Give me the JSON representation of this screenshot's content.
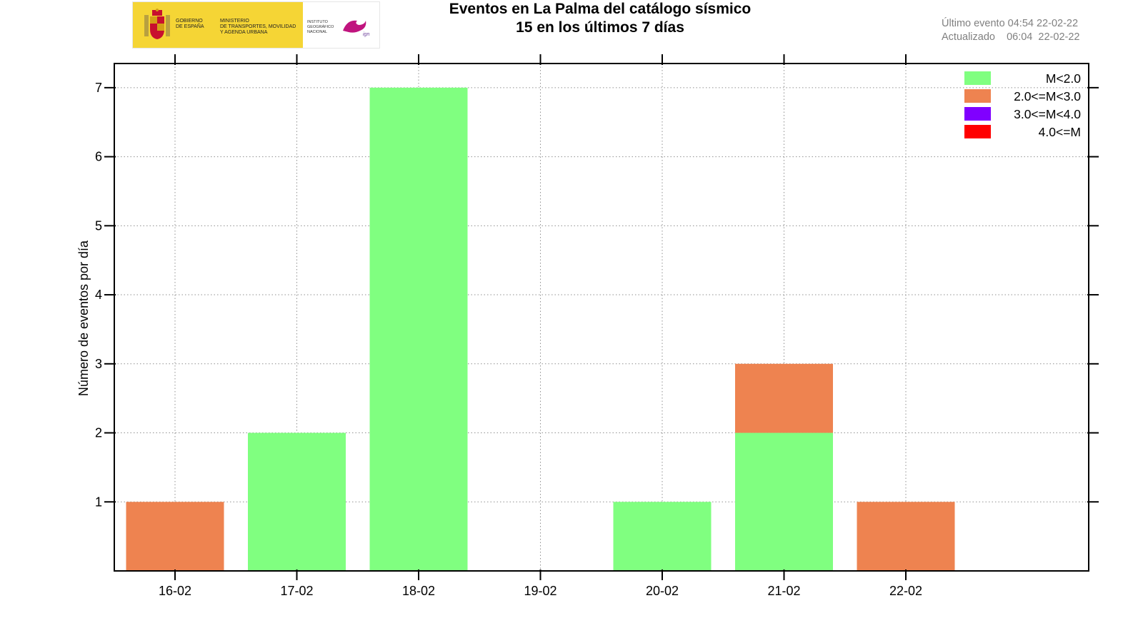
{
  "header": {
    "logo": {
      "gov_text": [
        "GOBIERNO",
        "DE ESPAÑA"
      ],
      "ministry_text": [
        "MINISTERIO",
        "DE TRANSPORTES, MOVILIDAD",
        "Y AGENDA URBANA"
      ],
      "ign_text": [
        "INSTITUTO",
        "GEOGRÁFICO",
        "NACIONAL"
      ],
      "ign_mark_text": "ign",
      "gov_color": "#f5d535",
      "ign_mark_color": "#c0147e"
    },
    "title_line1": "Eventos en La Palma del catálogo sísmico",
    "title_line2": "15 en los últimos 7 días",
    "last_event": "Último evento 04:54 22-02-22",
    "updated": "Actualizado    06:04  22-02-22"
  },
  "chart_data": {
    "type": "bar",
    "stacked": true,
    "title": "Eventos en La Palma del catálogo sísmico",
    "subtitle": "15 en los últimos 7 días",
    "xlabel": "",
    "ylabel": "Número de eventos por día",
    "categories": [
      "16-02",
      "17-02",
      "18-02",
      "19-02",
      "20-02",
      "21-02",
      "22-02"
    ],
    "ylim": [
      0,
      7.35
    ],
    "yticks": [
      1,
      2,
      3,
      4,
      5,
      6,
      7
    ],
    "grid": true,
    "legend_position": "top-right",
    "series": [
      {
        "name": "M<2.0",
        "color": "#80ff80",
        "values": [
          0,
          2,
          7,
          0,
          1,
          2,
          0
        ]
      },
      {
        "name": "2.0<=M<3.0",
        "color": "#ee8350",
        "values": [
          1,
          0,
          0,
          0,
          0,
          1,
          1
        ]
      },
      {
        "name": "3.0<=M<4.0",
        "color": "#8000ff",
        "values": [
          0,
          0,
          0,
          0,
          0,
          0,
          0
        ]
      },
      {
        "name": "4.0<=M",
        "color": "#ff0000",
        "values": [
          0,
          0,
          0,
          0,
          0,
          0,
          0
        ]
      }
    ]
  }
}
